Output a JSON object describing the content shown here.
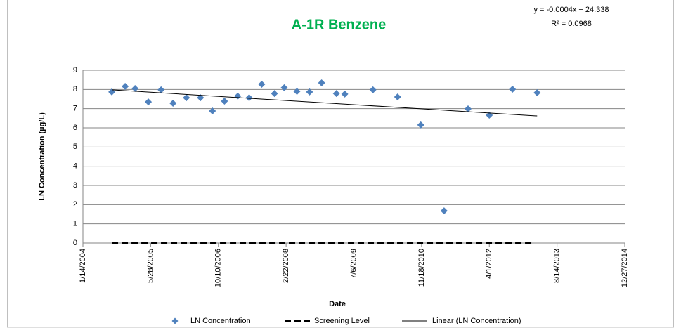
{
  "chart_data": {
    "type": "scatter",
    "title": "A-1R Benzene",
    "equation": "y = -0.0004x + 24.338",
    "r_squared": "R² = 0.0968",
    "xlabel": "Date",
    "ylabel": "LN Concentration (µg/L)",
    "xlim": [
      "1/14/2004",
      "12/27/2014"
    ],
    "xticks": [
      "1/14/2004",
      "5/28/2005",
      "10/10/2006",
      "2/22/2008",
      "7/6/2009",
      "11/18/2010",
      "4/1/2012",
      "8/14/2013",
      "12/27/2014"
    ],
    "ylim": [
      0,
      9
    ],
    "yticks": [
      0,
      1,
      2,
      3,
      4,
      5,
      6,
      7,
      8,
      9
    ],
    "grid": true,
    "legend": "bottom",
    "series": [
      {
        "name": "LN Concentration",
        "color": "#4f81bd",
        "marker": "diamond",
        "x": [
          "8/14/2004",
          "11/21/2004",
          "2/2/2005",
          "5/11/2005",
          "8/13/2005",
          "11/9/2005",
          "2/16/2006",
          "5/31/2006",
          "8/27/2006",
          "11/24/2006",
          "3/2/2007",
          "5/25/2007",
          "8/26/2007",
          "11/28/2007",
          "2/8/2008",
          "5/12/2008",
          "8/13/2008",
          "11/10/2008",
          "2/27/2009",
          "4/30/2009",
          "11/24/2009",
          "5/25/2010",
          "11/12/2010",
          "5/3/2011",
          "10/27/2011",
          "4/1/2012",
          "9/19/2012",
          "3/20/2013"
        ],
        "values": [
          7.87,
          8.16,
          8.05,
          7.35,
          7.98,
          7.28,
          7.57,
          7.57,
          6.88,
          7.39,
          7.65,
          7.57,
          8.27,
          7.79,
          8.09,
          7.9,
          7.87,
          8.34,
          7.79,
          7.76,
          7.98,
          7.61,
          6.15,
          1.68,
          6.99,
          6.66,
          8.01,
          7.83
        ]
      },
      {
        "name": "Screening Level",
        "color": "#000000",
        "style": "dashed",
        "x": [
          "8/14/2004",
          "2/6/2013"
        ],
        "values": [
          0,
          0
        ]
      },
      {
        "name": "Linear (LN Concentration)",
        "color": "#000000",
        "style": "solid",
        "x": [
          "8/14/2004",
          "3/20/2013"
        ],
        "values": [
          7.98,
          6.62
        ]
      }
    ]
  }
}
